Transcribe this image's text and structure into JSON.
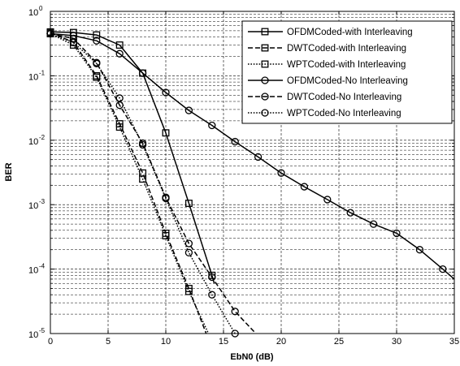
{
  "chart_data": {
    "type": "line",
    "xlabel": "EbN0 (dB)",
    "ylabel": "BER",
    "xlim": [
      0,
      35
    ],
    "ylim": [
      1e-05,
      1
    ],
    "yscale": "log",
    "grid": "dashed",
    "legend_position": "top-right",
    "x_ticks": [
      "0",
      "5",
      "10",
      "15",
      "20",
      "25",
      "30",
      "35"
    ],
    "y_ticks": [
      {
        "base": "10",
        "exp": "0",
        "value": 1
      },
      {
        "base": "10",
        "exp": "-1",
        "value": 0.1
      },
      {
        "base": "10",
        "exp": "-2",
        "value": 0.01
      },
      {
        "base": "10",
        "exp": "-3",
        "value": 0.001
      },
      {
        "base": "10",
        "exp": "-4",
        "value": 0.0001
      },
      {
        "base": "10",
        "exp": "-5",
        "value": 1e-05
      }
    ],
    "series": [
      {
        "name": "OFDMCoded-with Interleaving",
        "line": "solid",
        "marker": "square",
        "color": "#000000",
        "points": [
          [
            0,
            0.48
          ],
          [
            2,
            0.47
          ],
          [
            4,
            0.43
          ],
          [
            6,
            0.3
          ],
          [
            8,
            0.11
          ],
          [
            10,
            0.013
          ],
          [
            12,
            0.00105
          ],
          [
            14,
            8e-05
          ],
          [
            14.2,
            6e-05
          ]
        ]
      },
      {
        "name": "DWTCoded-with Interleaving",
        "line": "dashed",
        "marker": "square",
        "color": "#000000",
        "points": [
          [
            0,
            0.47
          ],
          [
            2,
            0.33
          ],
          [
            4,
            0.1
          ],
          [
            6,
            0.018
          ],
          [
            8,
            0.0031
          ],
          [
            10,
            0.00036
          ],
          [
            12,
            5e-05
          ],
          [
            13.5,
            1e-05
          ]
        ]
      },
      {
        "name": "WPTCoded-with Interleaving",
        "line": "dotted",
        "marker": "square",
        "color": "#000000",
        "points": [
          [
            0,
            0.45
          ],
          [
            2,
            0.3
          ],
          [
            4,
            0.095
          ],
          [
            6,
            0.016
          ],
          [
            8,
            0.0025
          ],
          [
            10,
            0.00033
          ],
          [
            12,
            4.5e-05
          ],
          [
            13.7,
            1e-05
          ]
        ]
      },
      {
        "name": "OFDMCoded-No Interleaving",
        "line": "solid",
        "marker": "circle",
        "color": "#000000",
        "points": [
          [
            0,
            0.45
          ],
          [
            2,
            0.42
          ],
          [
            4,
            0.35
          ],
          [
            6,
            0.22
          ],
          [
            8,
            0.11
          ],
          [
            10,
            0.055
          ],
          [
            12,
            0.029
          ],
          [
            14,
            0.017
          ],
          [
            16,
            0.0095
          ],
          [
            18,
            0.0055
          ],
          [
            20,
            0.0031
          ],
          [
            22,
            0.0019
          ],
          [
            24,
            0.0012
          ],
          [
            26,
            0.00075
          ],
          [
            28,
            0.0005
          ],
          [
            30,
            0.00036
          ],
          [
            32,
            0.0002
          ],
          [
            34,
            0.0001
          ],
          [
            35,
            7e-05
          ]
        ]
      },
      {
        "name": "DWTCoded-No Interleaving",
        "line": "dashed",
        "marker": "circle",
        "color": "#000000",
        "points": [
          [
            0,
            0.45
          ],
          [
            2,
            0.38
          ],
          [
            4,
            0.16
          ],
          [
            6,
            0.035
          ],
          [
            8,
            0.009
          ],
          [
            10,
            0.0013
          ],
          [
            12,
            0.00025
          ],
          [
            14,
            7.5e-05
          ],
          [
            16,
            2.2e-05
          ],
          [
            17.8,
            1e-05
          ]
        ]
      },
      {
        "name": "WPTCoded-No Interleaving",
        "line": "dotted",
        "marker": "circle",
        "color": "#000000",
        "points": [
          [
            0,
            0.45
          ],
          [
            2,
            0.33
          ],
          [
            4,
            0.155
          ],
          [
            6,
            0.045
          ],
          [
            8,
            0.0085
          ],
          [
            10,
            0.00125
          ],
          [
            12,
            0.00018
          ],
          [
            14,
            4e-05
          ],
          [
            16,
            1e-05
          ]
        ]
      }
    ]
  }
}
